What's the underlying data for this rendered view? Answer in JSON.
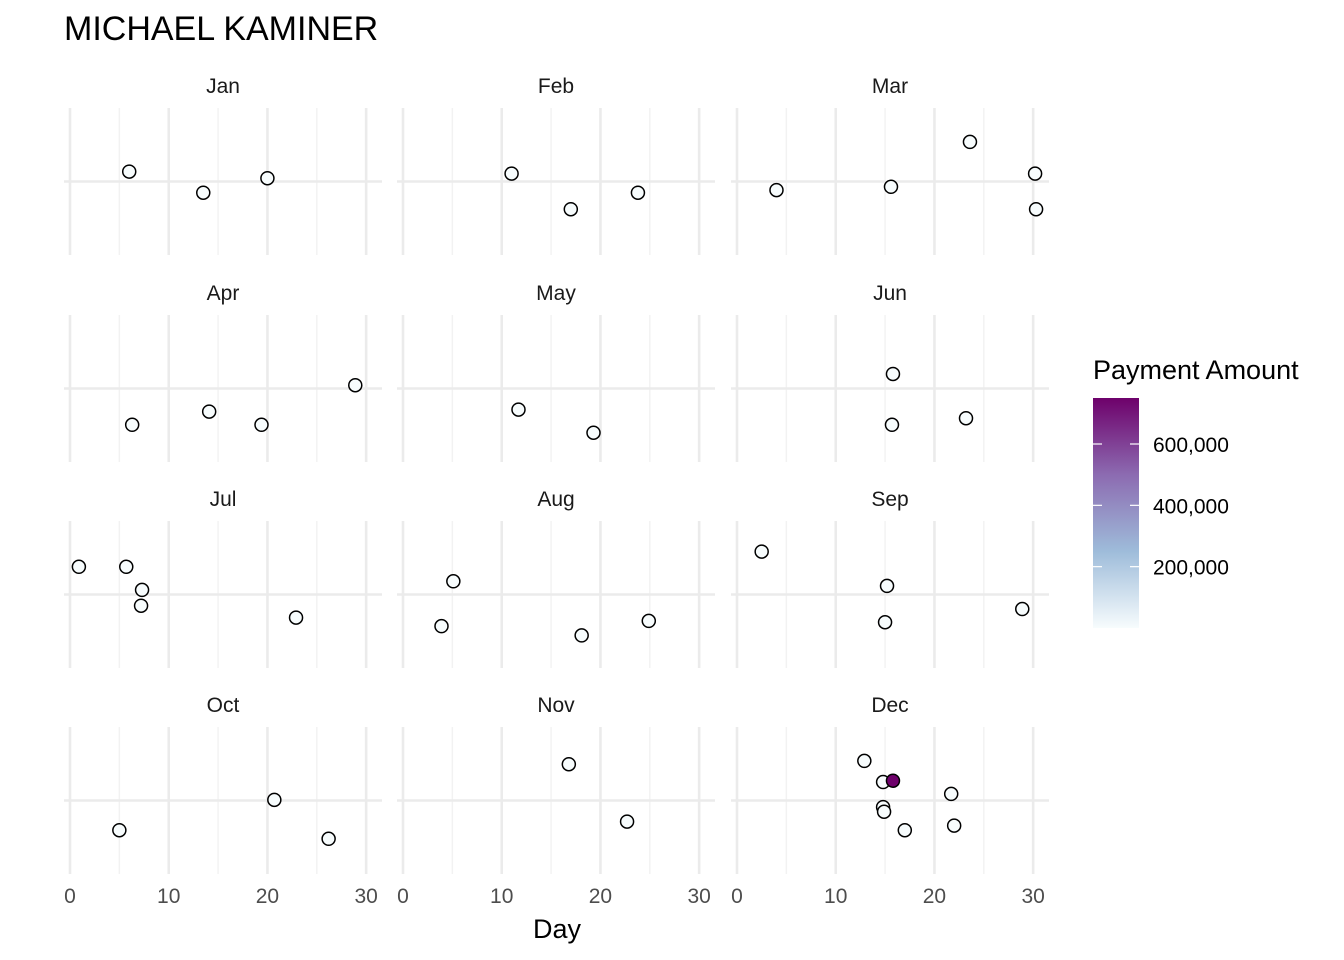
{
  "chart_data": {
    "type": "scatter",
    "title": "MICHAEL KAMINER",
    "xlabel": "Day",
    "ylabel": "",
    "xlim": [
      0,
      31
    ],
    "x_ticks": [
      0,
      10,
      20,
      30
    ],
    "grid": true,
    "facet_layout": "4 rows x 3 columns",
    "legend": {
      "title": "Payment Amount",
      "placement": "right",
      "ticks": [
        "200,000",
        "400,000",
        "600,000"
      ],
      "tick_values": [
        200000,
        400000,
        600000
      ],
      "range": [
        0,
        750000
      ],
      "colors": [
        "#f7fcfd",
        "#9ebcda",
        "#8c6bb1",
        "#6e016b"
      ]
    },
    "panels": [
      {
        "label": "Jan",
        "points": [
          {
            "day": 6,
            "jitter": 0.15,
            "amount": 500
          },
          {
            "day": 13.5,
            "jitter": -0.17,
            "amount": 500
          },
          {
            "day": 20,
            "jitter": 0.05,
            "amount": 500
          }
        ]
      },
      {
        "label": "Feb",
        "points": [
          {
            "day": 11,
            "jitter": 0.12,
            "amount": 500
          },
          {
            "day": 17,
            "jitter": -0.42,
            "amount": 500
          },
          {
            "day": 23.8,
            "jitter": -0.17,
            "amount": 500
          }
        ]
      },
      {
        "label": "Mar",
        "points": [
          {
            "day": 4,
            "jitter": -0.13,
            "amount": 500
          },
          {
            "day": 15.6,
            "jitter": -0.08,
            "amount": 500
          },
          {
            "day": 23.6,
            "jitter": 0.6,
            "amount": 500
          },
          {
            "day": 30.2,
            "jitter": 0.12,
            "amount": 500
          },
          {
            "day": 30.3,
            "jitter": -0.42,
            "amount": 500
          }
        ]
      },
      {
        "label": "Apr",
        "points": [
          {
            "day": 6.3,
            "jitter": -0.55,
            "amount": 500
          },
          {
            "day": 14.1,
            "jitter": -0.35,
            "amount": 500
          },
          {
            "day": 19.4,
            "jitter": -0.55,
            "amount": 500
          },
          {
            "day": 28.9,
            "jitter": 0.05,
            "amount": 500
          }
        ]
      },
      {
        "label": "May",
        "points": [
          {
            "day": 11.7,
            "jitter": -0.32,
            "amount": 500
          },
          {
            "day": 19.3,
            "jitter": -0.67,
            "amount": 500
          }
        ]
      },
      {
        "label": "Jun",
        "points": [
          {
            "day": 15.8,
            "jitter": 0.22,
            "amount": 500
          },
          {
            "day": 15.7,
            "jitter": -0.55,
            "amount": 500
          },
          {
            "day": 23.2,
            "jitter": -0.45,
            "amount": 500
          }
        ]
      },
      {
        "label": "Jul",
        "points": [
          {
            "day": 0.9,
            "jitter": 0.42,
            "amount": 500
          },
          {
            "day": 5.7,
            "jitter": 0.42,
            "amount": 500
          },
          {
            "day": 7.3,
            "jitter": 0.07,
            "amount": 500
          },
          {
            "day": 7.2,
            "jitter": -0.17,
            "amount": 500
          },
          {
            "day": 22.9,
            "jitter": -0.35,
            "amount": 500
          }
        ]
      },
      {
        "label": "Aug",
        "points": [
          {
            "day": 5.1,
            "jitter": 0.2,
            "amount": 500
          },
          {
            "day": 3.9,
            "jitter": -0.48,
            "amount": 500
          },
          {
            "day": 18.1,
            "jitter": -0.62,
            "amount": 500
          },
          {
            "day": 24.9,
            "jitter": -0.4,
            "amount": 500
          }
        ]
      },
      {
        "label": "Sep",
        "points": [
          {
            "day": 2.5,
            "jitter": 0.65,
            "amount": 500
          },
          {
            "day": 15.2,
            "jitter": 0.13,
            "amount": 500
          },
          {
            "day": 15,
            "jitter": -0.42,
            "amount": 500
          },
          {
            "day": 28.9,
            "jitter": -0.22,
            "amount": 500
          }
        ]
      },
      {
        "label": "Oct",
        "points": [
          {
            "day": 5,
            "jitter": -0.45,
            "amount": 500
          },
          {
            "day": 20.7,
            "jitter": 0.01,
            "amount": 500
          },
          {
            "day": 26.2,
            "jitter": -0.58,
            "amount": 500
          }
        ]
      },
      {
        "label": "Nov",
        "points": [
          {
            "day": 16.8,
            "jitter": 0.55,
            "amount": 500
          },
          {
            "day": 22.7,
            "jitter": -0.32,
            "amount": 500
          }
        ]
      },
      {
        "label": "Dec",
        "points": [
          {
            "day": 12.9,
            "jitter": 0.6,
            "amount": 500
          },
          {
            "day": 14.8,
            "jitter": 0.28,
            "amount": 500
          },
          {
            "day": 15.8,
            "jitter": 0.3,
            "amount": 750000
          },
          {
            "day": 21.7,
            "jitter": 0.1,
            "amount": 500
          },
          {
            "day": 14.8,
            "jitter": -0.1,
            "amount": 500
          },
          {
            "day": 14.9,
            "jitter": -0.17,
            "amount": 500
          },
          {
            "day": 17,
            "jitter": -0.45,
            "amount": 500
          },
          {
            "day": 22,
            "jitter": -0.38,
            "amount": 500
          }
        ]
      }
    ]
  }
}
